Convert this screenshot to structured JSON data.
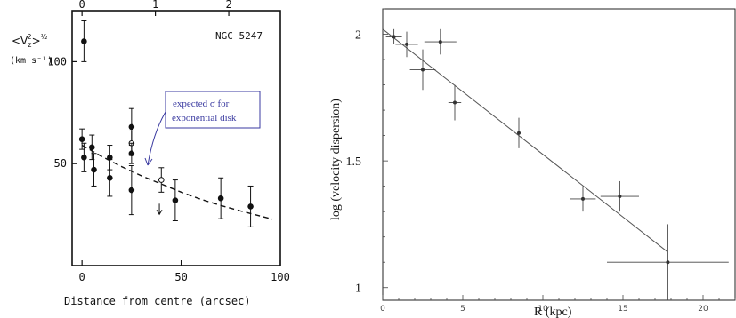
{
  "chart_data": [
    {
      "type": "scatter",
      "title": "NGC 5247",
      "ylabel_main": "<V",
      "ylabel_sup": "2",
      "ylabel_sub": "z",
      "ylabel_close": ">",
      "ylabel_exp": "½",
      "yunit": "(km s⁻¹)",
      "xlabel": "Distance from centre (arcsec)",
      "xlim": [
        -5,
        100
      ],
      "ylim": [
        0,
        125
      ],
      "xticks": [
        "0",
        "50",
        "100"
      ],
      "yticks": [
        "50",
        "100"
      ],
      "top_axis_ticks": [
        "0",
        "1",
        "2"
      ],
      "top_axis_values": [
        0,
        1,
        2
      ],
      "top_axis_scale": 37,
      "annotation": {
        "text_line1": "expected σ for",
        "text_line2": "exponential disk",
        "color": "#3a3aa0"
      },
      "curve": {
        "name": "expected σ for exponential disk",
        "x": [
          0,
          10,
          20,
          30,
          40,
          50,
          60,
          70,
          80,
          90,
          96
        ],
        "y": [
          59,
          53.5,
          48.5,
          44,
          40,
          36,
          32.5,
          29.5,
          26.8,
          24.3,
          22.8
        ]
      },
      "points": [
        {
          "x": 1,
          "y": 110,
          "err": 10,
          "open": false
        },
        {
          "x": 0,
          "y": 62,
          "err": 5,
          "open": false
        },
        {
          "x": 1,
          "y": 53,
          "err": 7,
          "open": false
        },
        {
          "x": 5,
          "y": 58,
          "err": 6,
          "open": false
        },
        {
          "x": 6,
          "y": 47,
          "err": 8,
          "open": false
        },
        {
          "x": 14,
          "y": 53,
          "err": 6,
          "open": false
        },
        {
          "x": 14,
          "y": 43,
          "err": 9,
          "open": false
        },
        {
          "x": 25,
          "y": 68,
          "err": 9,
          "open": false
        },
        {
          "x": 25,
          "y": 60,
          "err": 6,
          "open": true
        },
        {
          "x": 25,
          "y": 55,
          "err": 5,
          "open": false
        },
        {
          "x": 25,
          "y": 37,
          "err": 12,
          "open": false
        },
        {
          "x": 40,
          "y": 42,
          "err": 6,
          "open": true
        },
        {
          "x": 47,
          "y": 32,
          "err": 10,
          "open": false
        },
        {
          "x": 70,
          "y": 33,
          "err": 10,
          "open": false
        },
        {
          "x": 85,
          "y": 29,
          "err": 10,
          "open": false
        }
      ],
      "upper_limits": [
        {
          "x": 39,
          "y": 26
        }
      ]
    },
    {
      "type": "scatter",
      "xlabel": "R (kpc)",
      "ylabel": "log (velocity dispersion)",
      "xlim": [
        0,
        22
      ],
      "ylim": [
        0.95,
        2.1
      ],
      "xticks": [
        "0",
        "5",
        "10",
        "15",
        "20"
      ],
      "xtick_values": [
        0,
        5,
        10,
        15,
        20
      ],
      "yticks": [
        "1",
        "1.5",
        "2"
      ],
      "ytick_values": [
        1,
        1.5,
        2
      ],
      "minor_x_step": 1,
      "minor_y_step": 0.1,
      "fit_line": {
        "x": [
          0,
          17.8
        ],
        "y": [
          2.02,
          1.14
        ]
      },
      "points": [
        {
          "x": 0.7,
          "y": 1.99,
          "xerr": 0.5,
          "yerr": 0.03
        },
        {
          "x": 1.5,
          "y": 1.96,
          "xerr": 0.7,
          "yerr": 0.05
        },
        {
          "x": 2.5,
          "y": 1.86,
          "xerr": 0.8,
          "yerr": 0.08
        },
        {
          "x": 3.6,
          "y": 1.97,
          "xerr": 1.0,
          "yerr": 0.05
        },
        {
          "x": 4.5,
          "y": 1.73,
          "xerr": 0.4,
          "yerr": 0.07
        },
        {
          "x": 8.5,
          "y": 1.61,
          "xerr": 0.1,
          "yerr": 0.06
        },
        {
          "x": 12.5,
          "y": 1.35,
          "xerr": 0.8,
          "yerr": 0.05
        },
        {
          "x": 14.8,
          "y": 1.36,
          "xerr": 1.2,
          "yerr": 0.06
        },
        {
          "x": 17.8,
          "y": 1.1,
          "xerr": 3.8,
          "yerr": 0.15
        }
      ]
    }
  ]
}
